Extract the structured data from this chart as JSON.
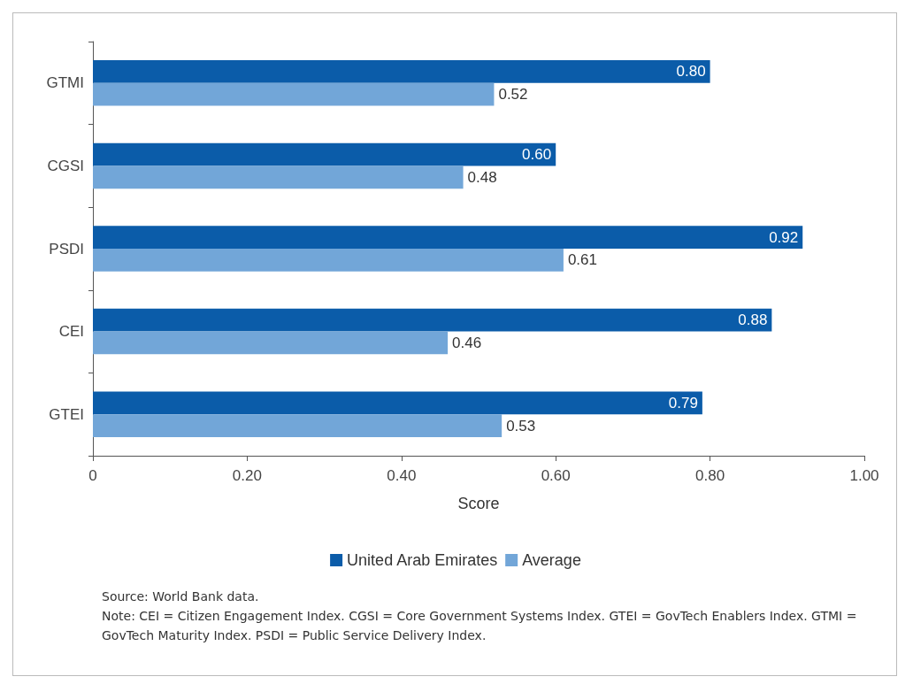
{
  "chart_data": {
    "type": "bar",
    "orientation": "horizontal",
    "xlabel": "Score",
    "categories": [
      "GTMI",
      "CGSI",
      "PSDI",
      "CEI",
      "GTEI"
    ],
    "series": [
      {
        "name": "United Arab Emirates",
        "color": "#0b5ca9",
        "values": [
          0.8,
          0.6,
          0.92,
          0.88,
          0.79
        ],
        "value_labels": [
          "0.80",
          "0.60",
          "0.92",
          "0.88",
          "0.79"
        ]
      },
      {
        "name": "Average",
        "color": "#72a6d8",
        "values": [
          0.52,
          0.48,
          0.61,
          0.46,
          0.53
        ],
        "value_labels": [
          "0.52",
          "0.48",
          "0.61",
          "0.46",
          "0.53"
        ]
      }
    ],
    "xlim": [
      0,
      1
    ],
    "xticks": [
      0,
      {
        "value": 0.2,
        "label": "0.20"
      },
      {
        "value": 0.4,
        "label": "0.40"
      },
      {
        "value": 0.6,
        "label": "0.60"
      },
      {
        "value": 0.8,
        "label": "0.80"
      },
      {
        "value": 1,
        "label": "1.00"
      }
    ],
    "grid": false,
    "legend": "bottom",
    "annotations": [
      "Source: World Bank data.",
      "Note: CEI = Citizen Engagement Index. CGSI = Core Government Systems Index. GTEI = GovTech Enablers Index. GTMI = GovTech Maturity Index. PSDI = Public Service Delivery Index."
    ]
  }
}
